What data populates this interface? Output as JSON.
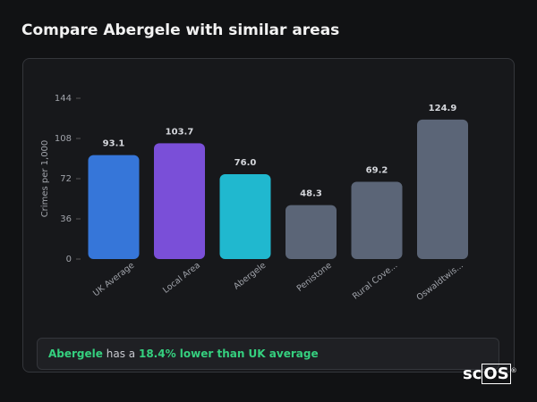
{
  "chart_data": {
    "type": "bar",
    "title": "Compare Abergele with similar areas",
    "y_label": "Crimes per 1,000",
    "categories": [
      "UK Average",
      "Local Area",
      "Abergele",
      "Penistone",
      "Rural Cove...",
      "Oswaldtwis..."
    ],
    "values": [
      93.1,
      103.7,
      76.0,
      48.3,
      69.2,
      124.9
    ],
    "value_labels": [
      "93.1",
      "103.7",
      "76.0",
      "48.3",
      "69.2",
      "124.9"
    ],
    "colors": [
      "#3676d9",
      "#7a4fd8",
      "#20b8cf",
      "#5b6577",
      "#5b6577",
      "#5b6577"
    ],
    "ylim": [
      0,
      144
    ],
    "yticks": [
      0,
      36,
      72,
      108,
      144
    ],
    "grid": false
  },
  "summary": {
    "area": "Abergele",
    "text": "has a",
    "highlight": "18.4% lower than UK average"
  },
  "logo": {
    "part1": "sc",
    "part2": "OS",
    "mark": "®"
  }
}
